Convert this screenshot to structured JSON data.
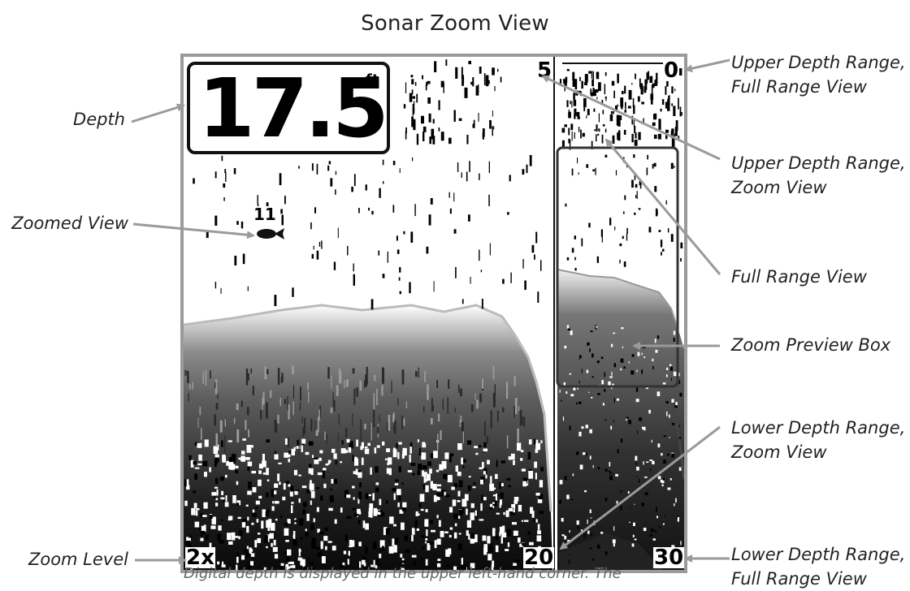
{
  "title": "Sonar Zoom View",
  "depth": {
    "value": "17.5",
    "unit": "ft"
  },
  "fish_depth_label": "11",
  "zoom_level": "2x",
  "zoom_view": {
    "upper_depth": "5",
    "lower_depth": "20"
  },
  "full_range_view": {
    "upper_depth": "0",
    "lower_depth": "30"
  },
  "callouts": {
    "depth": "Depth",
    "zoomed_view": "Zoomed View",
    "zoom_level": "Zoom Level",
    "upper_full_1": "Upper Depth Range,",
    "upper_full_2": "Full Range View",
    "upper_zoom_1": "Upper Depth Range,",
    "upper_zoom_2": "Zoom View",
    "full_range_view": "Full Range View",
    "zoom_preview_box": "Zoom Preview Box",
    "lower_zoom_1": "Lower Depth Range,",
    "lower_zoom_2": "Zoom View",
    "lower_full_1": "Lower Depth Range,",
    "lower_full_2": "Full Range View"
  },
  "caption": "Digital depth is displayed in the upper left-hand corner. The",
  "colors": {
    "frame": "#9a9a9a",
    "arrow": "#9a9a9a",
    "text": "#222222"
  }
}
